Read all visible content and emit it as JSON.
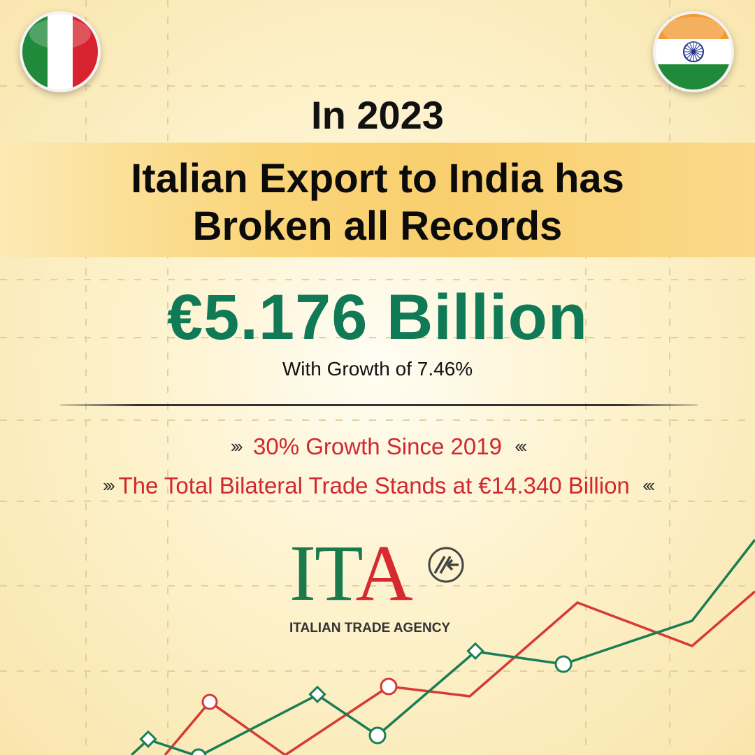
{
  "header": {
    "year_line": "In 2023",
    "headline_line1": "Italian Export to India has",
    "headline_line2": "Broken all Records"
  },
  "highlight": {
    "amount": "€5.176 Billion",
    "growth": "With Growth of 7.46%"
  },
  "points": [
    "30% Growth Since 2019",
    "The Total Bilateral Trade Stands at €14.340 Billion"
  ],
  "logo": {
    "mark_text": "ITA",
    "agency_name": "ITALIAN TRADE AGENCY"
  },
  "flags": {
    "left": "italy-flag-icon",
    "right": "india-flag-icon"
  },
  "colors": {
    "green": "#0f7a55",
    "red": "#d0282e",
    "banner": "#f9cf6e",
    "background": "#fdf2cc"
  }
}
